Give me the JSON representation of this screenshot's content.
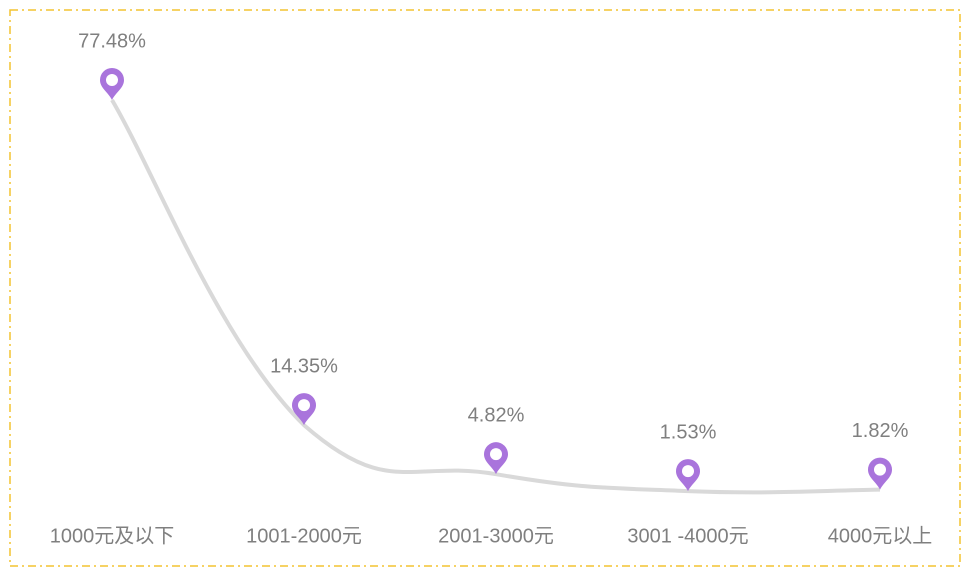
{
  "chart_data": {
    "type": "line",
    "categories": [
      "1000元及以下",
      "1001-2000元",
      "2001-3000元",
      "3001 -4000元",
      "4000元以上"
    ],
    "values": [
      77.48,
      14.35,
      4.82,
      1.53,
      1.82
    ],
    "value_labels": [
      "77.48%",
      "14.35%",
      "4.82%",
      "1.53%",
      "1.82%"
    ],
    "line_color": "#d9d9d9",
    "marker_color": "#a974dc"
  }
}
